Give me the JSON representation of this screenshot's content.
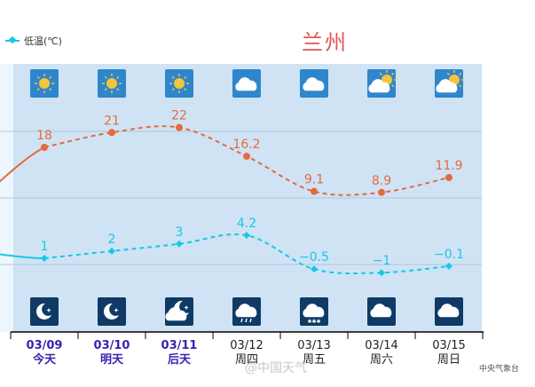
{
  "legend": {
    "label": "低温(℃)",
    "color": "#17c8e6"
  },
  "city": "兰州",
  "watermark": "@中国天气",
  "source": "中央气象台",
  "colors": {
    "high": "#e66a3c",
    "low": "#17c8e6",
    "plot_bg": "#cfe3f5",
    "today_bg": "#eef6fd",
    "date_highlight": "#3a1fb0"
  },
  "chart_data": {
    "type": "line",
    "categories": [
      "03/09",
      "03/10",
      "03/11",
      "03/12",
      "03/13",
      "03/14",
      "03/15"
    ],
    "weekdays": [
      "今天",
      "明天",
      "后天",
      "周四",
      "周五",
      "周六",
      "周日"
    ],
    "highlight_days": [
      0,
      1,
      2
    ],
    "series": [
      {
        "key": "high",
        "values": [
          18,
          21,
          22,
          16.2,
          9.1,
          8.9,
          11.9
        ],
        "labels": [
          "18",
          "21",
          "22",
          "16.2",
          "9.1",
          "8.9",
          "11.9"
        ]
      },
      {
        "name": "低温(℃)",
        "key": "low",
        "values": [
          1,
          2,
          3,
          4.2,
          -0.5,
          -1,
          -0.1
        ],
        "labels": [
          "1",
          "2",
          "3",
          "4.2",
          "−0.5",
          "−1",
          "−0.1"
        ]
      }
    ],
    "previous_day": {
      "high": 7,
      "low": 2
    },
    "day_icons": [
      "sunny-icon",
      "sunny-icon",
      "sunny-icon",
      "cloudy-icon",
      "cloudy-icon",
      "partly-cloudy-icon",
      "partly-cloudy-icon"
    ],
    "night_icons": [
      "clear-night-moon-icon",
      "clear-night-moon-icon",
      "partly-cloudy-night-icon",
      "night-showers-icon",
      "night-snow-icon",
      "night-cloudy-icon",
      "night-cloudy-icon"
    ],
    "grid": true,
    "legend_position": "top-left"
  }
}
